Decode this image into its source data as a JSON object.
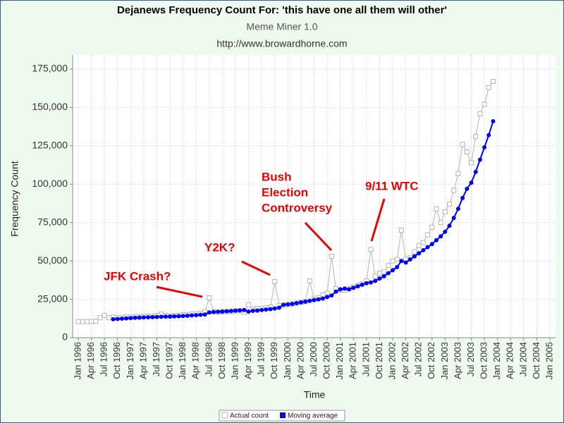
{
  "chart_data": {
    "type": "line",
    "title": "Dejanews Frequency Count For: 'this have one all them will other'",
    "subtitle": "Meme Miner 1.0",
    "source": "http://www.browardhorne.com",
    "x_label": "Time",
    "y_label": "Frequency Count",
    "categories": [
      "Jan 1996",
      null,
      null,
      "Apr 1996",
      null,
      null,
      "Jul 1996",
      null,
      null,
      "Oct 1996",
      null,
      null,
      "Jan 1997",
      null,
      null,
      "Apr 1997",
      null,
      null,
      "Jul 1997",
      null,
      null,
      "Oct 1997",
      null,
      null,
      "Jan 1998",
      null,
      null,
      "Apr 1998",
      null,
      null,
      "Jul 1998",
      null,
      null,
      "Oct 1998",
      null,
      null,
      "Jan 1999",
      null,
      null,
      "Apr 1999",
      null,
      null,
      "Jul 1999",
      null,
      null,
      "Oct 1999",
      null,
      null,
      "Jan 2000",
      null,
      null,
      "Apr 2000",
      null,
      null,
      "Jul 2000",
      null,
      null,
      "Oct 2000",
      null,
      null,
      "Jan 2001",
      null,
      null,
      "Apr 2001",
      null,
      null,
      "Jul 2001",
      null,
      null,
      "Oct 2001",
      null,
      null,
      "Jan 2002",
      null,
      null,
      "Apr 2002",
      null,
      null,
      "Jul 2002",
      null,
      null,
      "Oct 2002",
      null,
      null,
      "Jan 2003",
      null,
      null,
      "Apr 2003",
      null,
      null,
      "Jul 2003",
      null,
      null,
      "Oct 2003",
      null,
      null,
      "Jan 2004",
      null,
      null,
      "Apr 2004",
      null,
      null,
      "Jul 2004",
      null,
      null,
      "Oct 2004",
      null,
      null,
      "Jan 2005"
    ],
    "series": [
      {
        "name": "Actual count",
        "color": "#b4b4b4",
        "values": [
          10500,
          10500,
          10500,
          10500,
          10800,
          13000,
          14500,
          13000,
          13500,
          13000,
          13200,
          13500,
          13500,
          13800,
          13500,
          14000,
          14000,
          14000,
          14500,
          15500,
          14500,
          14000,
          14500,
          14500,
          15000,
          15000,
          15500,
          15500,
          16000,
          17000,
          26000,
          17000,
          16500,
          17000,
          17000,
          17000,
          17500,
          17500,
          16500,
          21500,
          18500,
          19000,
          19000,
          19500,
          20000,
          36500,
          21000,
          21000,
          21500,
          22000,
          22500,
          23000,
          23500,
          37000,
          25000,
          26000,
          28000,
          29000,
          53000,
          32000,
          31000,
          31000,
          32000,
          33000,
          34000,
          35000,
          37000,
          57500,
          40000,
          42000,
          43000,
          47000,
          50000,
          51000,
          70000,
          51000,
          52000,
          56000,
          60000,
          62000,
          67000,
          72000,
          84000,
          75000,
          82000,
          87000,
          96000,
          107000,
          126000,
          121000,
          114000,
          131000,
          146000,
          152000,
          163000,
          167000,
          null,
          null,
          null,
          null,
          null,
          null,
          null,
          null,
          null,
          null,
          null,
          null,
          null
        ]
      },
      {
        "name": "Moving average",
        "color": "#0000ff",
        "values": [
          null,
          null,
          null,
          null,
          null,
          null,
          null,
          null,
          12000,
          12200,
          12400,
          12600,
          12800,
          13000,
          13100,
          13200,
          13300,
          13400,
          13500,
          13600,
          13700,
          13800,
          13900,
          14000,
          14100,
          14300,
          14500,
          14700,
          14900,
          15100,
          16500,
          16700,
          16900,
          17000,
          17200,
          17400,
          17600,
          17800,
          18000,
          17000,
          17500,
          17700,
          18000,
          18300,
          18600,
          19000,
          19500,
          21500,
          21700,
          22000,
          22500,
          23000,
          23500,
          24000,
          24500,
          25000,
          25500,
          26500,
          27500,
          30000,
          31500,
          32000,
          31500,
          32500,
          33500,
          34500,
          35500,
          36000,
          37000,
          38500,
          40000,
          42000,
          44000,
          46000,
          50000,
          49000,
          51000,
          53000,
          55000,
          57000,
          59000,
          61000,
          63500,
          66000,
          69000,
          73000,
          78000,
          84000,
          91000,
          97000,
          101000,
          108000,
          116000,
          124000,
          132000,
          141000,
          null,
          null,
          null,
          null,
          null,
          null,
          null,
          null,
          null,
          null,
          null,
          null,
          null
        ]
      }
    ],
    "ylim": [
      0,
      175000
    ],
    "yticks": [
      0,
      {
        "value": 25000,
        "label": "25,000"
      },
      {
        "value": 50000,
        "label": "50,000"
      },
      {
        "value": 75000,
        "label": "75,000"
      },
      {
        "value": 100000,
        "label": "100,000"
      },
      {
        "value": 125000,
        "label": "125,000"
      },
      {
        "value": 150000,
        "label": "150,000"
      },
      {
        "value": 175000,
        "label": "175,000"
      }
    ],
    "grid": true,
    "legend": "bottom",
    "annotations": [
      {
        "lines": [
          "JFK Crash?"
        ]
      },
      {
        "lines": [
          "Y2K?"
        ]
      },
      {
        "lines": [
          "Bush",
          "Election",
          "Controversy"
        ]
      },
      {
        "lines": [
          "9/11 WTC"
        ]
      }
    ],
    "annotation_color": "#ee0000"
  }
}
